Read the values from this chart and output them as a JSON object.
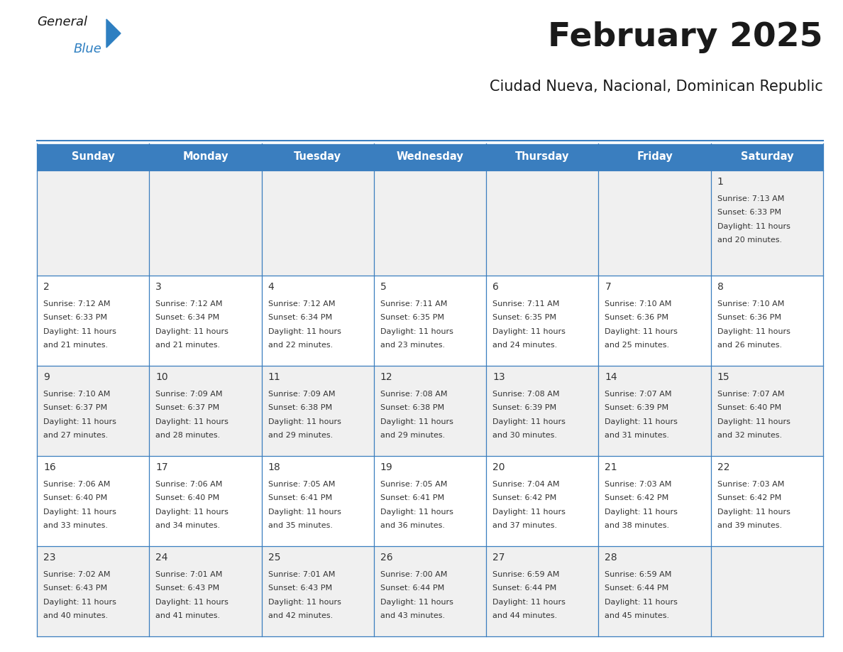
{
  "title": "February 2025",
  "subtitle": "Ciudad Nueva, Nacional, Dominican Republic",
  "header_color": "#3a7ebf",
  "header_text_color": "#ffffff",
  "bg_color": "#ffffff",
  "alt_row_color": "#f0f0f0",
  "border_color": "#3a7ebf",
  "text_color": "#333333",
  "days_of_week": [
    "Sunday",
    "Monday",
    "Tuesday",
    "Wednesday",
    "Thursday",
    "Friday",
    "Saturday"
  ],
  "day_name_fontsize": 10.5,
  "title_fontsize": 34,
  "subtitle_fontsize": 15,
  "cell_fontsize": 8.0,
  "day_number_fontsize": 10,
  "logo_color1": "#1a1a1a",
  "logo_color2": "#2e7fc1",
  "logo_triangle_color": "#2e7fc1",
  "calendar_data": [
    [
      null,
      null,
      null,
      null,
      null,
      null,
      {
        "day": 1,
        "sunrise": "7:13 AM",
        "sunset": "6:33 PM",
        "daylight_hours": 11,
        "daylight_minutes": 20
      }
    ],
    [
      {
        "day": 2,
        "sunrise": "7:12 AM",
        "sunset": "6:33 PM",
        "daylight_hours": 11,
        "daylight_minutes": 21
      },
      {
        "day": 3,
        "sunrise": "7:12 AM",
        "sunset": "6:34 PM",
        "daylight_hours": 11,
        "daylight_minutes": 21
      },
      {
        "day": 4,
        "sunrise": "7:12 AM",
        "sunset": "6:34 PM",
        "daylight_hours": 11,
        "daylight_minutes": 22
      },
      {
        "day": 5,
        "sunrise": "7:11 AM",
        "sunset": "6:35 PM",
        "daylight_hours": 11,
        "daylight_minutes": 23
      },
      {
        "day": 6,
        "sunrise": "7:11 AM",
        "sunset": "6:35 PM",
        "daylight_hours": 11,
        "daylight_minutes": 24
      },
      {
        "day": 7,
        "sunrise": "7:10 AM",
        "sunset": "6:36 PM",
        "daylight_hours": 11,
        "daylight_minutes": 25
      },
      {
        "day": 8,
        "sunrise": "7:10 AM",
        "sunset": "6:36 PM",
        "daylight_hours": 11,
        "daylight_minutes": 26
      }
    ],
    [
      {
        "day": 9,
        "sunrise": "7:10 AM",
        "sunset": "6:37 PM",
        "daylight_hours": 11,
        "daylight_minutes": 27
      },
      {
        "day": 10,
        "sunrise": "7:09 AM",
        "sunset": "6:37 PM",
        "daylight_hours": 11,
        "daylight_minutes": 28
      },
      {
        "day": 11,
        "sunrise": "7:09 AM",
        "sunset": "6:38 PM",
        "daylight_hours": 11,
        "daylight_minutes": 29
      },
      {
        "day": 12,
        "sunrise": "7:08 AM",
        "sunset": "6:38 PM",
        "daylight_hours": 11,
        "daylight_minutes": 29
      },
      {
        "day": 13,
        "sunrise": "7:08 AM",
        "sunset": "6:39 PM",
        "daylight_hours": 11,
        "daylight_minutes": 30
      },
      {
        "day": 14,
        "sunrise": "7:07 AM",
        "sunset": "6:39 PM",
        "daylight_hours": 11,
        "daylight_minutes": 31
      },
      {
        "day": 15,
        "sunrise": "7:07 AM",
        "sunset": "6:40 PM",
        "daylight_hours": 11,
        "daylight_minutes": 32
      }
    ],
    [
      {
        "day": 16,
        "sunrise": "7:06 AM",
        "sunset": "6:40 PM",
        "daylight_hours": 11,
        "daylight_minutes": 33
      },
      {
        "day": 17,
        "sunrise": "7:06 AM",
        "sunset": "6:40 PM",
        "daylight_hours": 11,
        "daylight_minutes": 34
      },
      {
        "day": 18,
        "sunrise": "7:05 AM",
        "sunset": "6:41 PM",
        "daylight_hours": 11,
        "daylight_minutes": 35
      },
      {
        "day": 19,
        "sunrise": "7:05 AM",
        "sunset": "6:41 PM",
        "daylight_hours": 11,
        "daylight_minutes": 36
      },
      {
        "day": 20,
        "sunrise": "7:04 AM",
        "sunset": "6:42 PM",
        "daylight_hours": 11,
        "daylight_minutes": 37
      },
      {
        "day": 21,
        "sunrise": "7:03 AM",
        "sunset": "6:42 PM",
        "daylight_hours": 11,
        "daylight_minutes": 38
      },
      {
        "day": 22,
        "sunrise": "7:03 AM",
        "sunset": "6:42 PM",
        "daylight_hours": 11,
        "daylight_minutes": 39
      }
    ],
    [
      {
        "day": 23,
        "sunrise": "7:02 AM",
        "sunset": "6:43 PM",
        "daylight_hours": 11,
        "daylight_minutes": 40
      },
      {
        "day": 24,
        "sunrise": "7:01 AM",
        "sunset": "6:43 PM",
        "daylight_hours": 11,
        "daylight_minutes": 41
      },
      {
        "day": 25,
        "sunrise": "7:01 AM",
        "sunset": "6:43 PM",
        "daylight_hours": 11,
        "daylight_minutes": 42
      },
      {
        "day": 26,
        "sunrise": "7:00 AM",
        "sunset": "6:44 PM",
        "daylight_hours": 11,
        "daylight_minutes": 43
      },
      {
        "day": 27,
        "sunrise": "6:59 AM",
        "sunset": "6:44 PM",
        "daylight_hours": 11,
        "daylight_minutes": 44
      },
      {
        "day": 28,
        "sunrise": "6:59 AM",
        "sunset": "6:44 PM",
        "daylight_hours": 11,
        "daylight_minutes": 45
      },
      null
    ]
  ]
}
